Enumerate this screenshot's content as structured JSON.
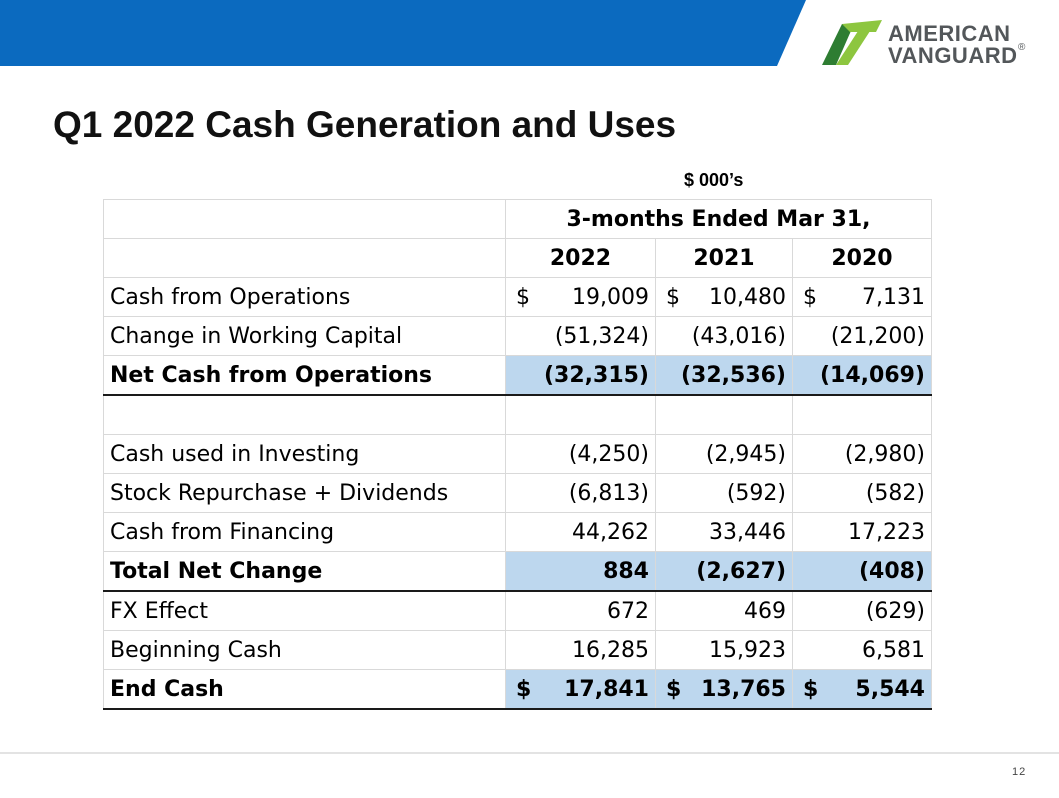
{
  "colors": {
    "banner": "#0b6abf",
    "logo_dark_green": "#2e7d32",
    "logo_light_green": "#8dc63f",
    "logo_text": "#53575a",
    "highlight_row": "#bdd7ee"
  },
  "logo": {
    "line1": "AMERICAN",
    "line2": "VANGUARD",
    "registered": "®"
  },
  "title": "Q1 2022 Cash Generation and Uses",
  "units": "$ 000’s",
  "table": {
    "period_header": "3-months Ended Mar 31,",
    "years": [
      "2022",
      "2021",
      "2020"
    ],
    "rows": [
      {
        "label": "Cash from Operations",
        "v1": "19,009",
        "v2": "10,480",
        "v3": "7,131",
        "c1": "$",
        "c2": "$",
        "c3": "$"
      },
      {
        "label": "Change in Working Capital",
        "v1": "(51,324)",
        "v2": "(43,016)",
        "v3": "(21,200)"
      },
      {
        "label": "Net Cash from Operations",
        "v1": "(32,315)",
        "v2": "(32,536)",
        "v3": "(14,069)"
      },
      {
        "label": "",
        "v1": "",
        "v2": "",
        "v3": ""
      },
      {
        "label": "Cash used in Investing",
        "v1": "(4,250)",
        "v2": "(2,945)",
        "v3": "(2,980)"
      },
      {
        "label": "Stock Repurchase + Dividends",
        "v1": "(6,813)",
        "v2": "(592)",
        "v3": "(582)"
      },
      {
        "label": "Cash from Financing",
        "v1": "44,262",
        "v2": "33,446",
        "v3": "17,223"
      },
      {
        "label": "Total Net Change",
        "v1": "884",
        "v2": "(2,627)",
        "v3": "(408)"
      },
      {
        "label": "FX Effect",
        "v1": "672",
        "v2": "469",
        "v3": "(629)"
      },
      {
        "label": "Beginning Cash",
        "v1": "16,285",
        "v2": "15,923",
        "v3": "6,581"
      },
      {
        "label": "End Cash",
        "v1": "17,841",
        "v2": "13,765",
        "v3": "5,544",
        "c1": "$",
        "c2": "$",
        "c3": "$"
      }
    ]
  },
  "page_number": "12"
}
